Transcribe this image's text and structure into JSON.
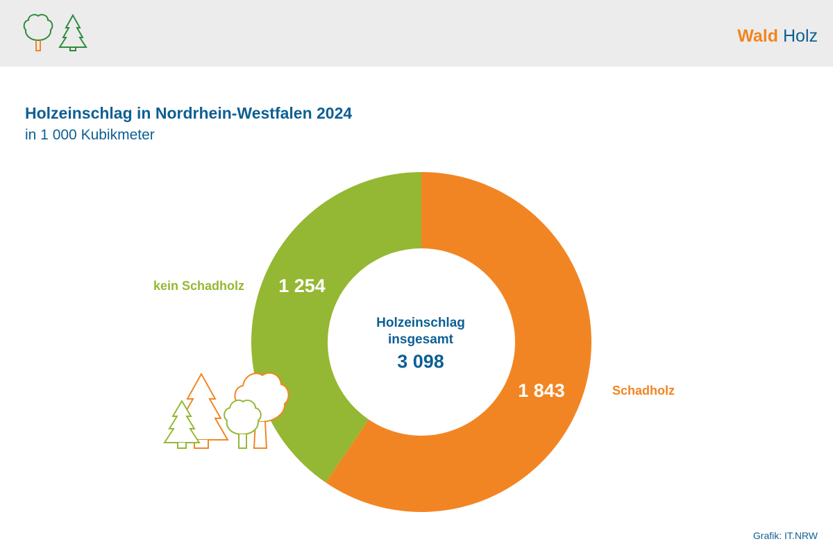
{
  "header": {
    "brand_part1": "Wald",
    "brand_part2": "Holz",
    "icons": [
      "deciduous-tree-icon",
      "conifer-tree-icon"
    ]
  },
  "title": "Holzeinschlag in Nordrhein-Westfalen 2024",
  "subtitle": "in 1 000 Kubikmeter",
  "credit": "Grafik: IT.NRW",
  "colors": {
    "accent_orange": "#f28523",
    "accent_green": "#94b833",
    "brand_blue": "#0e5f93",
    "header_bg": "#ececec"
  },
  "chart_data": {
    "type": "pie",
    "style": "donut",
    "title": "Holzeinschlag in Nordrhein-Westfalen 2024",
    "subtitle": "in 1 000 Kubikmeter",
    "center_label_line1": "Holzeinschlag",
    "center_label_line2": "insgesamt",
    "total": 3098,
    "total_label": "3 098",
    "slices": [
      {
        "name": "Schadholz",
        "value": 1843,
        "value_label": "1 843",
        "color": "#f28523"
      },
      {
        "name": "kein Schadholz",
        "value": 1254,
        "value_label": "1 254",
        "color": "#94b833"
      }
    ]
  }
}
